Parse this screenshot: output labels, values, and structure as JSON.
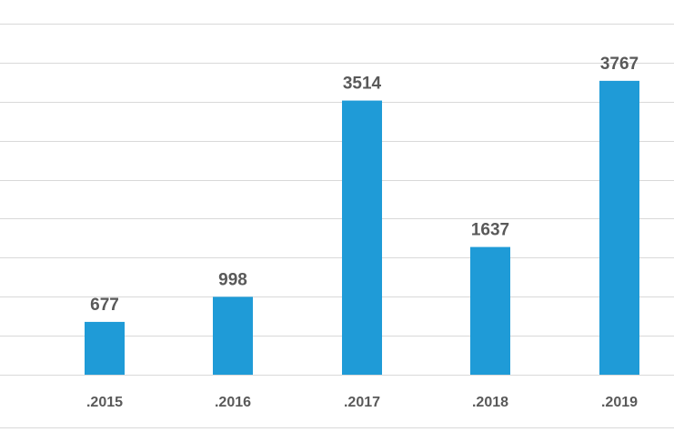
{
  "chart_data": {
    "type": "bar",
    "categories": [
      ".2015",
      ".2016",
      ".2017",
      ".2018",
      ".2019"
    ],
    "values": [
      677,
      998,
      3514,
      1637,
      3767
    ],
    "title": "",
    "xlabel": "",
    "ylabel": "",
    "ylim": [
      0,
      4500
    ],
    "grid": true,
    "legend": "none",
    "colors": {
      "bar": "#1f9bd7",
      "grid": "#d9d9d9",
      "label": "#595959"
    }
  }
}
